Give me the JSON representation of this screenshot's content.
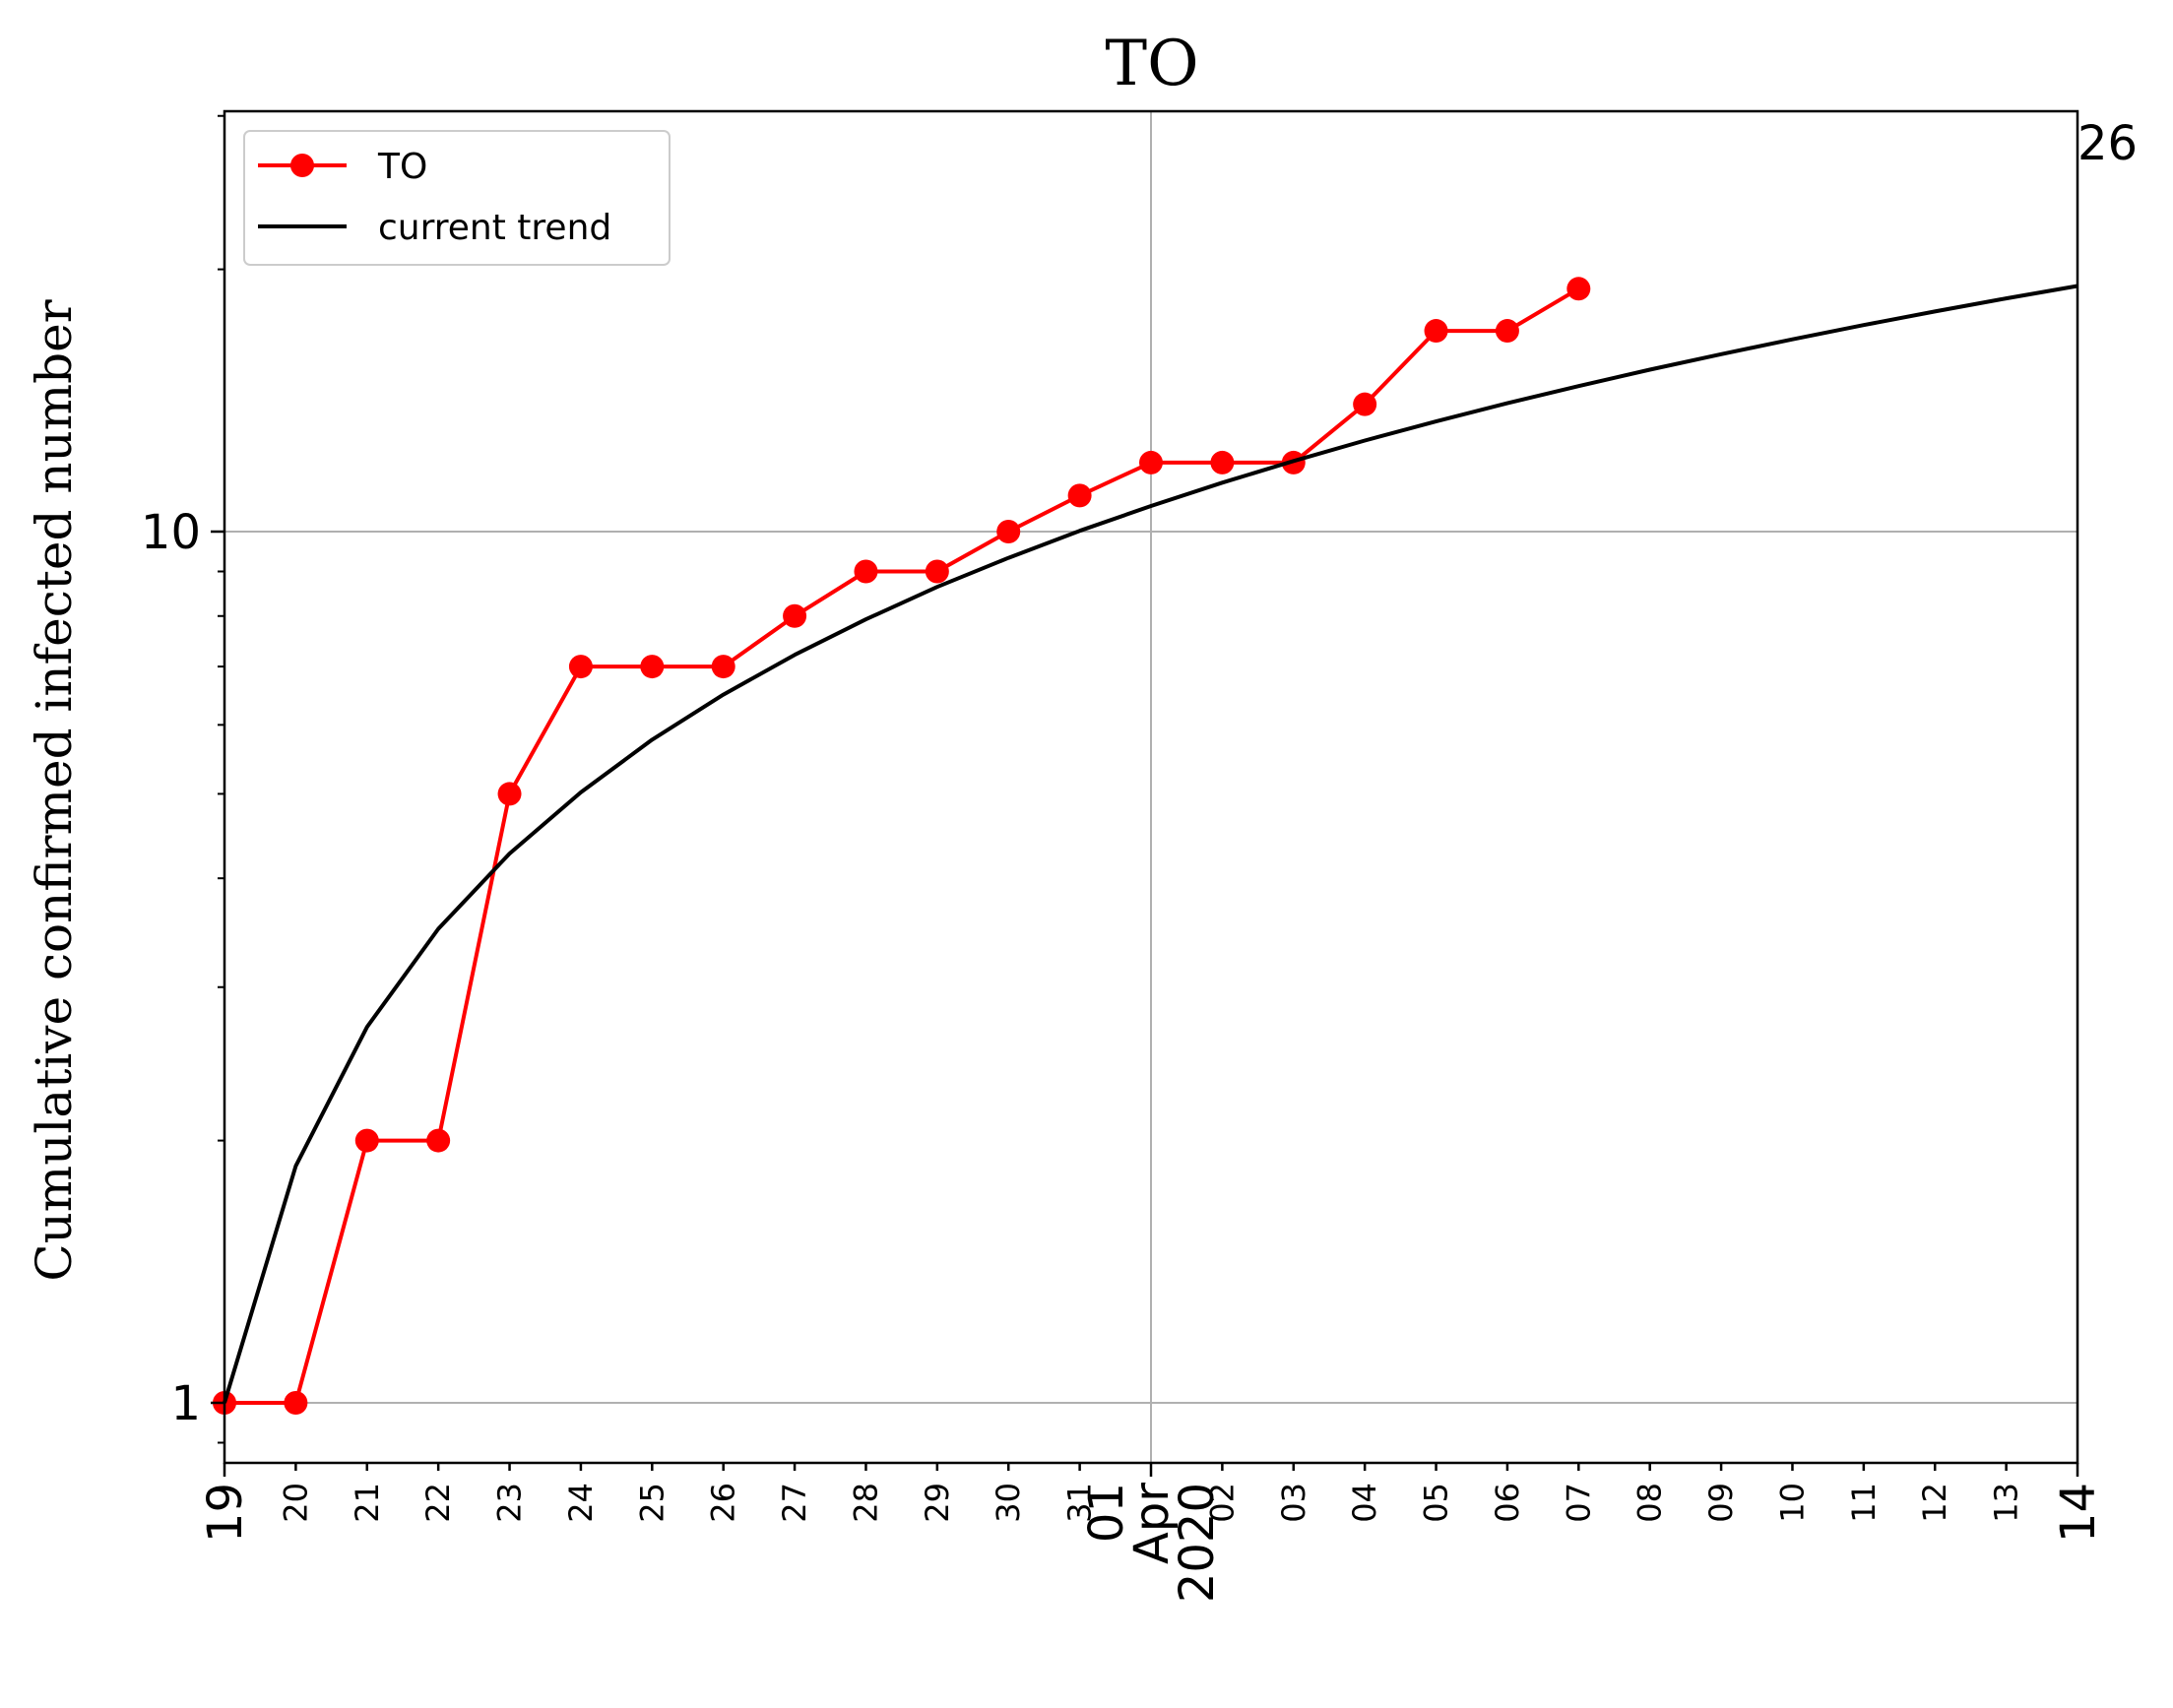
{
  "chart_data": {
    "type": "line",
    "title": "TO",
    "ylabel": "Cumulative confirmed infected number",
    "xlabel": "",
    "yscale": "log",
    "y_ticks": [
      1,
      10
    ],
    "grid": true,
    "legend_placement": "top-left",
    "end_label": "26",
    "x_dates": [
      "2020-03-19",
      "2020-03-20",
      "2020-03-21",
      "2020-03-22",
      "2020-03-23",
      "2020-03-24",
      "2020-03-25",
      "2020-03-26",
      "2020-03-27",
      "2020-03-28",
      "2020-03-29",
      "2020-03-30",
      "2020-03-31",
      "2020-04-01",
      "2020-04-02",
      "2020-04-03",
      "2020-04-04",
      "2020-04-05",
      "2020-04-06",
      "2020-04-07",
      "2020-04-08",
      "2020-04-09",
      "2020-04-10",
      "2020-04-11",
      "2020-04-12",
      "2020-04-13",
      "2020-04-14"
    ],
    "x_tick_labels": [
      "19",
      "20",
      "21",
      "22",
      "23",
      "24",
      "25",
      "26",
      "27",
      "28",
      "29",
      "30",
      "31",
      "01\nApr\n2020",
      "02",
      "03",
      "04",
      "05",
      "06",
      "07",
      "08",
      "09",
      "10",
      "11",
      "12",
      "13",
      "14"
    ],
    "series": [
      {
        "name": "TO",
        "color": "#ff0000",
        "marker": "circle",
        "x": [
          "2020-03-19",
          "2020-03-20",
          "2020-03-21",
          "2020-03-22",
          "2020-03-23",
          "2020-03-24",
          "2020-03-25",
          "2020-03-26",
          "2020-03-27",
          "2020-03-28",
          "2020-03-29",
          "2020-03-30",
          "2020-03-31",
          "2020-04-01",
          "2020-04-02",
          "2020-04-03",
          "2020-04-04",
          "2020-04-05",
          "2020-04-06",
          "2020-04-07"
        ],
        "values": [
          1,
          1,
          2,
          2,
          5,
          7,
          7,
          7,
          8,
          9,
          9,
          10,
          11,
          12,
          12,
          12,
          14,
          17,
          17,
          19
        ]
      },
      {
        "name": "current trend",
        "color": "#000000",
        "marker": "none",
        "x": [
          "2020-03-19",
          "2020-03-20",
          "2020-03-21",
          "2020-03-22",
          "2020-03-23",
          "2020-03-24",
          "2020-03-25",
          "2020-03-26",
          "2020-03-27",
          "2020-03-28",
          "2020-03-29",
          "2020-03-30",
          "2020-03-31",
          "2020-04-01",
          "2020-04-02",
          "2020-04-03",
          "2020-04-04",
          "2020-04-05",
          "2020-04-06",
          "2020-04-07",
          "2020-04-08",
          "2020-04-09",
          "2020-04-10",
          "2020-04-11",
          "2020-04-12",
          "2020-04-13",
          "2020-04-14"
        ],
        "values": [
          1.0,
          1.87,
          2.7,
          3.5,
          4.27,
          5.02,
          5.77,
          6.5,
          7.22,
          7.93,
          8.64,
          9.33,
          10.02,
          10.7,
          11.38,
          12.05,
          12.72,
          13.38,
          14.04,
          14.69,
          15.34,
          15.98,
          16.62,
          17.26,
          17.89,
          18.52,
          19.14
        ]
      }
    ]
  }
}
